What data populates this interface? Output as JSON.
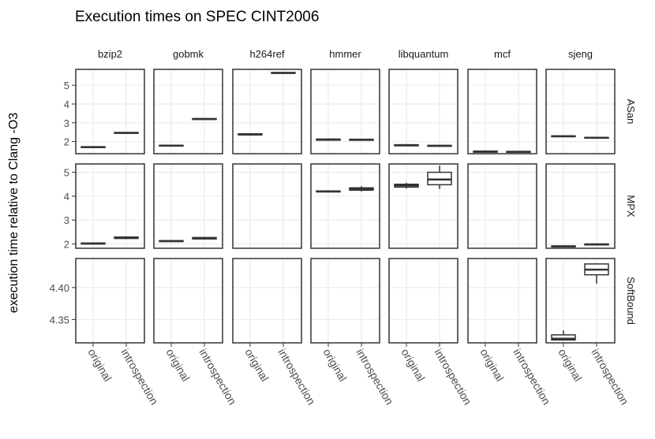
{
  "chart_data": {
    "type": "boxplot-facet-grid",
    "title": "Execution times on SPEC CINT2006",
    "ylabel": "execution time relative to Clang -O3",
    "xlabel": "",
    "columns": [
      "bzip2",
      "gobmk",
      "h264ref",
      "hmmer",
      "libquantum",
      "mcf",
      "sjeng"
    ],
    "x_categories": [
      "original",
      "introspection"
    ],
    "grid": true,
    "rows": [
      {
        "name": "ASan",
        "ylim": [
          1.35,
          5.85
        ],
        "yticks": [
          2,
          3,
          4,
          5
        ],
        "ytick_labels": [
          "2",
          "3",
          "4",
          "5"
        ],
        "boxes": {
          "bzip2": {
            "original": [
              1.66,
              1.68,
              1.7,
              1.72,
              1.74
            ],
            "introspection": [
              2.42,
              2.44,
              2.46,
              2.48,
              2.5
            ]
          },
          "gobmk": {
            "original": [
              1.74,
              1.76,
              1.78,
              1.8,
              1.82
            ],
            "introspection": [
              3.16,
              3.18,
              3.2,
              3.22,
              3.24
            ]
          },
          "h264ref": {
            "original": [
              2.32,
              2.35,
              2.38,
              2.41,
              2.44
            ],
            "introspection": [
              5.62,
              5.64,
              5.66,
              5.68,
              5.7
            ]
          },
          "hmmer": {
            "original": [
              2.04,
              2.07,
              2.1,
              2.13,
              2.17
            ],
            "introspection": [
              2.04,
              2.07,
              2.09,
              2.12,
              2.15
            ]
          },
          "libquantum": {
            "original": [
              1.74,
              1.77,
              1.8,
              1.83,
              1.86
            ],
            "introspection": [
              1.73,
              1.75,
              1.77,
              1.79,
              1.81
            ]
          },
          "mcf": {
            "original": [
              1.4,
              1.43,
              1.46,
              1.49,
              1.52
            ],
            "introspection": [
              1.41,
              1.43,
              1.45,
              1.47,
              1.49
            ]
          },
          "sjeng": {
            "original": [
              2.24,
              2.26,
              2.28,
              2.3,
              2.33
            ],
            "introspection": [
              2.16,
              2.18,
              2.2,
              2.22,
              2.25
            ]
          }
        }
      },
      {
        "name": "MPX",
        "ylim": [
          1.82,
          5.35
        ],
        "yticks": [
          2,
          3,
          4,
          5
        ],
        "ytick_labels": [
          "2",
          "3",
          "4",
          "5"
        ],
        "boxes": {
          "bzip2": {
            "original": [
              1.98,
              2.0,
              2.02,
              2.04,
              2.06
            ],
            "introspection": [
              2.2,
              2.23,
              2.26,
              2.29,
              2.32
            ]
          },
          "gobmk": {
            "original": [
              2.08,
              2.1,
              2.12,
              2.14,
              2.16
            ],
            "introspection": [
              2.18,
              2.21,
              2.24,
              2.27,
              2.3
            ]
          },
          "hmmer": {
            "original": [
              4.16,
              4.18,
              4.2,
              4.22,
              4.24
            ],
            "introspection": [
              4.2,
              4.25,
              4.3,
              4.35,
              4.42
            ]
          },
          "libquantum": {
            "original": [
              4.32,
              4.38,
              4.45,
              4.5,
              4.56
            ],
            "introspection": [
              4.3,
              4.48,
              4.7,
              5.0,
              5.28
            ]
          },
          "sjeng": {
            "original": [
              1.86,
              1.88,
              1.9,
              1.92,
              1.94
            ],
            "introspection": [
              1.94,
              1.96,
              1.98,
              2.0,
              2.02
            ]
          }
        }
      },
      {
        "name": "SoftBound",
        "ylim": [
          4.3135,
          4.4455
        ],
        "yticks": [
          4.35,
          4.4
        ],
        "ytick_labels": [
          "4.35",
          "4.40"
        ],
        "boxes": {
          "sjeng": {
            "original": [
              4.317,
              4.318,
              4.32,
              4.326,
              4.333
            ],
            "introspection": [
              4.406,
              4.42,
              4.428,
              4.437,
              4.438
            ]
          }
        }
      }
    ]
  }
}
